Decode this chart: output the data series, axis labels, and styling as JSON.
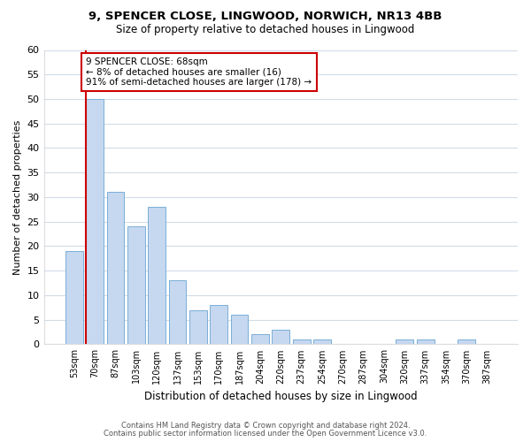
{
  "title_line1": "9, SPENCER CLOSE, LINGWOOD, NORWICH, NR13 4BB",
  "title_line2": "Size of property relative to detached houses in Lingwood",
  "xlabel": "Distribution of detached houses by size in Lingwood",
  "ylabel": "Number of detached properties",
  "categories": [
    "53sqm",
    "70sqm",
    "87sqm",
    "103sqm",
    "120sqm",
    "137sqm",
    "153sqm",
    "170sqm",
    "187sqm",
    "204sqm",
    "220sqm",
    "237sqm",
    "254sqm",
    "270sqm",
    "287sqm",
    "304sqm",
    "320sqm",
    "337sqm",
    "354sqm",
    "370sqm",
    "387sqm"
  ],
  "bar_heights": [
    19,
    50,
    31,
    24,
    28,
    13,
    7,
    8,
    6,
    2,
    3,
    1,
    1,
    0,
    0,
    0,
    1,
    1,
    0,
    1,
    0
  ],
  "bar_color": "#c5d8f0",
  "bar_edge_color": "#7aaed6",
  "highlight_color": "#cc0000",
  "annotation_text": "9 SPENCER CLOSE: 68sqm\n← 8% of detached houses are smaller (16)\n91% of semi-detached houses are larger (178) →",
  "annotation_box_color": "white",
  "annotation_box_edge_color": "#cc0000",
  "ylim": [
    0,
    60
  ],
  "yticks": [
    0,
    5,
    10,
    15,
    20,
    25,
    30,
    35,
    40,
    45,
    50,
    55,
    60
  ],
  "footer_line1": "Contains HM Land Registry data © Crown copyright and database right 2024.",
  "footer_line2": "Contains public sector information licensed under the Open Government Licence v3.0.",
  "bg_color": "#ffffff",
  "plot_bg_color": "#ffffff",
  "grid_color": "#d0dce8"
}
